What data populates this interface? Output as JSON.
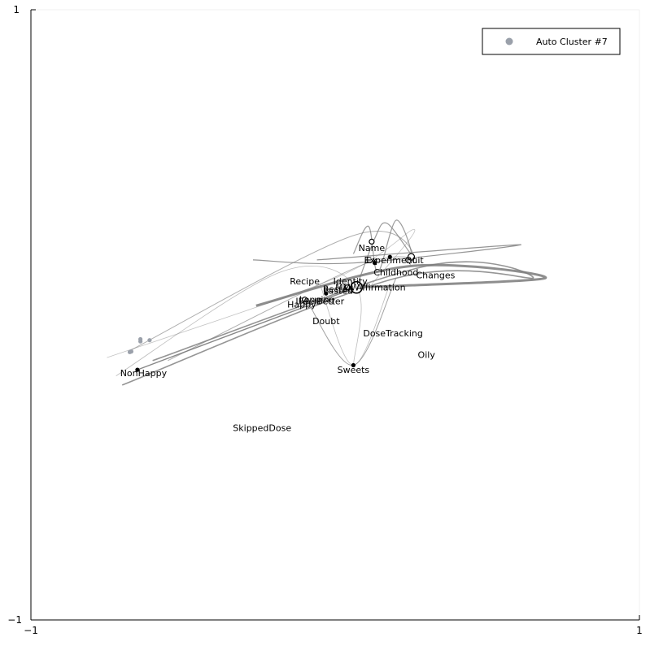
{
  "chart_data": {
    "type": "scatter",
    "title": "",
    "xlabel": "",
    "ylabel": "",
    "xlim": [
      -1,
      1
    ],
    "ylim": [
      -1,
      1
    ],
    "x_ticks": [
      "−1",
      "1"
    ],
    "y_ticks": [
      "−1",
      "1"
    ],
    "grid": false,
    "legend": {
      "position": "top-right",
      "entries": [
        {
          "name": "Auto Cluster #7",
          "color": "#9aa0aa"
        }
      ]
    },
    "labels": [
      {
        "text": "Name",
        "x": 0.12,
        "y": 0.22
      },
      {
        "text": "Experiment",
        "x": 0.18,
        "y": 0.18
      },
      {
        "text": "Quit",
        "x": 0.26,
        "y": 0.18
      },
      {
        "text": "Ex",
        "x": 0.12,
        "y": 0.18
      },
      {
        "text": "Childhood",
        "x": 0.2,
        "y": 0.14
      },
      {
        "text": "Changes",
        "x": 0.33,
        "y": 0.13
      },
      {
        "text": "Recipe",
        "x": -0.1,
        "y": 0.11
      },
      {
        "text": "Identity",
        "x": 0.05,
        "y": 0.11
      },
      {
        "text": "MMW",
        "x": 0.04,
        "y": 0.09
      },
      {
        "text": "Affirmation",
        "x": 0.15,
        "y": 0.09
      },
      {
        "text": "Pasted",
        "x": 0.01,
        "y": 0.08
      },
      {
        "text": "Rested",
        "x": 0.01,
        "y": 0.085
      },
      {
        "text": "Longing",
        "x": -0.06,
        "y": 0.05
      },
      {
        "text": "IFeelBetter",
        "x": -0.05,
        "y": 0.045
      },
      {
        "text": "Happy",
        "x": -0.11,
        "y": 0.035
      },
      {
        "text": "Doubt",
        "x": -0.03,
        "y": -0.02
      },
      {
        "text": "DoseTracking",
        "x": 0.19,
        "y": -0.06
      },
      {
        "text": "Oily",
        "x": 0.3,
        "y": -0.13
      },
      {
        "text": "Sweets",
        "x": 0.06,
        "y": -0.18
      },
      {
        "text": "NonHappy",
        "x": -0.63,
        "y": -0.19
      },
      {
        "text": "SkippedDose",
        "x": -0.24,
        "y": -0.37
      }
    ],
    "points": [
      {
        "x": -0.65,
        "y": -0.18,
        "r": 2
      },
      {
        "x": 0.06,
        "y": -0.165,
        "r": 2
      },
      {
        "x": 0.12,
        "y": 0.24,
        "r": 3
      },
      {
        "x": 0.18,
        "y": 0.19,
        "r": 2
      },
      {
        "x": 0.25,
        "y": 0.19,
        "r": 4
      },
      {
        "x": 0.13,
        "y": 0.17,
        "r": 2
      },
      {
        "x": -0.03,
        "y": 0.07,
        "r": 2
      },
      {
        "x": -0.1,
        "y": 0.05,
        "r": 3
      },
      {
        "x": 0.07,
        "y": 0.09,
        "r": 7
      },
      {
        "x": 0.04,
        "y": 0.09,
        "r": 3
      }
    ],
    "cluster_points": [
      {
        "x": -0.64,
        "y": -0.08
      },
      {
        "x": -0.64,
        "y": -0.087
      },
      {
        "x": -0.61,
        "y": -0.083
      },
      {
        "x": -0.67,
        "y": -0.12
      },
      {
        "x": -0.675,
        "y": -0.122
      }
    ],
    "edges": [
      {
        "path": [
          [
            -0.65,
            -0.18
          ],
          [
            0.07,
            0.09
          ]
        ],
        "w": 1.4,
        "o": 0.9
      },
      {
        "path": [
          [
            -0.7,
            -0.23
          ],
          [
            0.2,
            0.12
          ],
          [
            0.65,
            0.12
          ],
          [
            0.3,
            0.16
          ],
          [
            -0.6,
            -0.15
          ]
        ],
        "w": 1.6,
        "o": 0.8
      },
      {
        "path": [
          [
            -0.26,
            0.03
          ],
          [
            0.25,
            0.16
          ],
          [
            0.69,
            0.12
          ],
          [
            0.07,
            0.09
          ]
        ],
        "w": 3,
        "o": 0.85
      },
      {
        "path": [
          [
            -0.68,
            -0.12
          ],
          [
            0.06,
            0.26
          ],
          [
            0.26,
            0.19
          ],
          [
            0.08,
            0.16
          ],
          [
            -0.55,
            -0.15
          ]
        ],
        "w": 1,
        "o": 0.6
      },
      {
        "path": [
          [
            -0.06,
            0.18
          ],
          [
            0.61,
            0.23
          ],
          [
            0.06,
            0.17
          ],
          [
            -0.27,
            0.18
          ]
        ],
        "w": 1.2,
        "o": 0.8
      },
      {
        "path": [
          [
            -0.1,
            0.06
          ],
          [
            0.06,
            -0.165
          ],
          [
            0.2,
            0.12
          ]
        ],
        "w": 1,
        "o": 0.7
      },
      {
        "path": [
          [
            0.06,
            0.2
          ],
          [
            0.11,
            0.29
          ],
          [
            0.14,
            0.14
          ],
          [
            0.2,
            0.31
          ],
          [
            0.25,
            0.2
          ],
          [
            0.17,
            0.3
          ],
          [
            0.13,
            0.25
          ],
          [
            0.07,
            0.09
          ]
        ],
        "w": 1.2,
        "o": 0.75
      },
      {
        "path": [
          [
            -0.72,
            -0.2
          ],
          [
            -0.18,
            0.14
          ],
          [
            0.07,
            0.09
          ],
          [
            0.06,
            -0.165
          ]
        ],
        "w": 0.8,
        "o": 0.5
      },
      {
        "path": [
          [
            -0.75,
            -0.14
          ],
          [
            0.0,
            0.12
          ],
          [
            0.26,
            0.28
          ],
          [
            0.12,
            0.1
          ]
        ],
        "w": 0.8,
        "o": 0.45
      },
      {
        "path": [
          [
            -0.05,
            0.1
          ],
          [
            0.06,
            -0.165
          ],
          [
            0.18,
            0.1
          ]
        ],
        "w": 0.8,
        "o": 0.5
      }
    ]
  }
}
